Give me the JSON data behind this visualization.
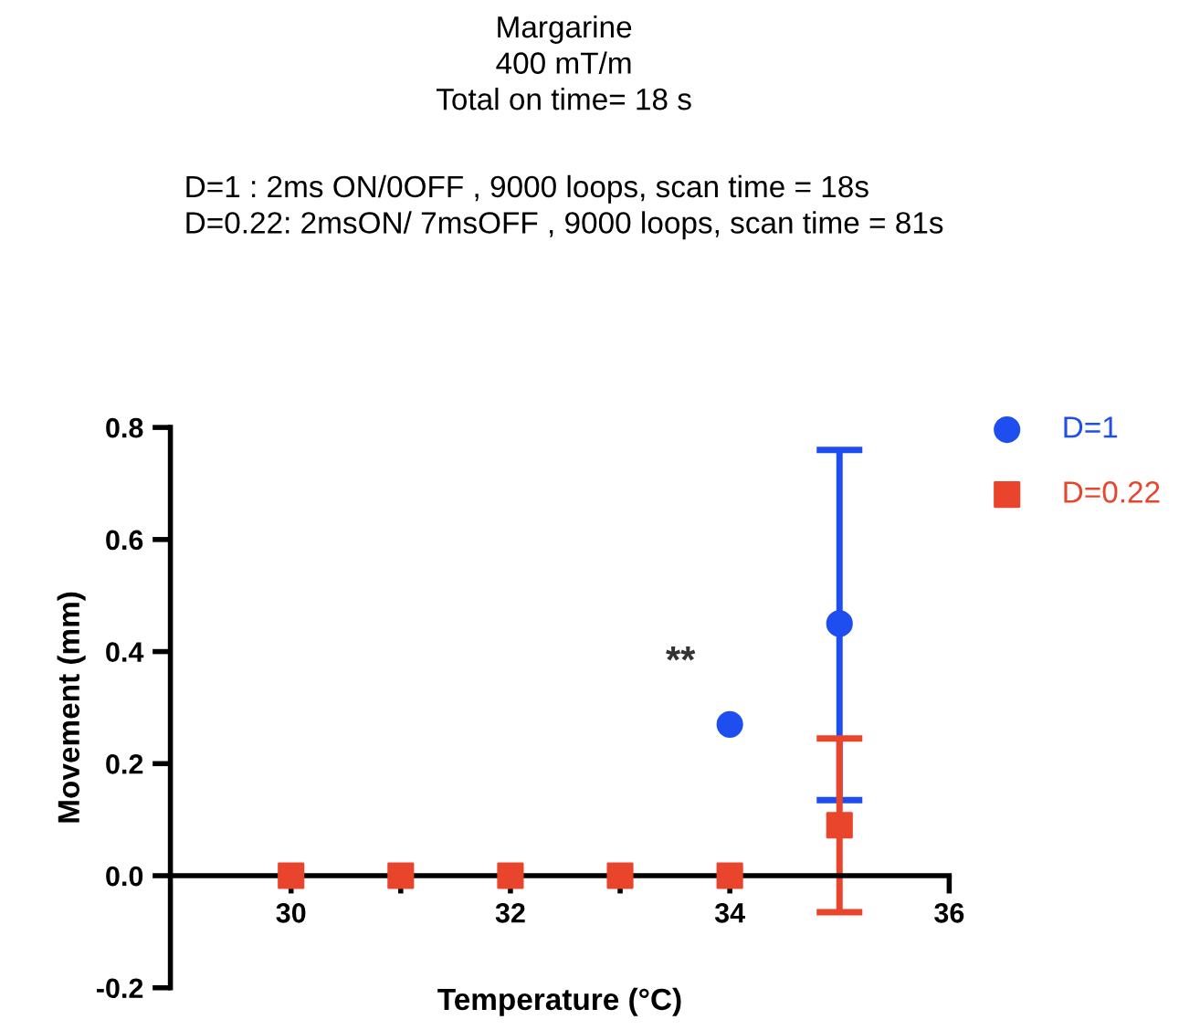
{
  "chart_data": {
    "type": "scatter",
    "title": "Margarine\n400 mT/m\nTotal on time= 18 s",
    "subtitle": "D=1 : 2ms ON/0OFF , 9000 loops, scan time = 18s\nD=0.22: 2msON/ 7msOFF , 9000 loops, scan time = 81s",
    "xlabel": "Temperature (°C)",
    "ylabel": "Movement (mm)",
    "x": [
      30,
      31,
      32,
      33,
      34,
      35
    ],
    "series": [
      {
        "name": "D=1",
        "color": "#1f4ef0",
        "marker": "circle",
        "values": [
          null,
          null,
          null,
          null,
          0.27,
          0.45
        ],
        "errors": [
          null,
          null,
          null,
          null,
          null,
          [
            0.135,
            0.76
          ]
        ]
      },
      {
        "name": "D=0.22",
        "color": "#e8452c",
        "marker": "square",
        "values": [
          0,
          0,
          0,
          0,
          0,
          0.09
        ],
        "errors": [
          null,
          null,
          null,
          null,
          null,
          [
            -0.065,
            0.245
          ]
        ]
      }
    ],
    "annotations": [
      "**"
    ],
    "xlim": [
      28.9,
      36
    ],
    "xticks": [
      30,
      {
        "value": 31,
        "label": null
      },
      32,
      {
        "value": 33,
        "label": null
      },
      34,
      {
        "value": 35,
        "label": null
      },
      36
    ],
    "ylim": [
      -0.2,
      0.8
    ],
    "yticks": [
      -0.2,
      {
        "value": 0,
        "label": "0.0"
      },
      0.2,
      0.4,
      0.6,
      0.8
    ],
    "grid": false,
    "legend": "top right"
  }
}
